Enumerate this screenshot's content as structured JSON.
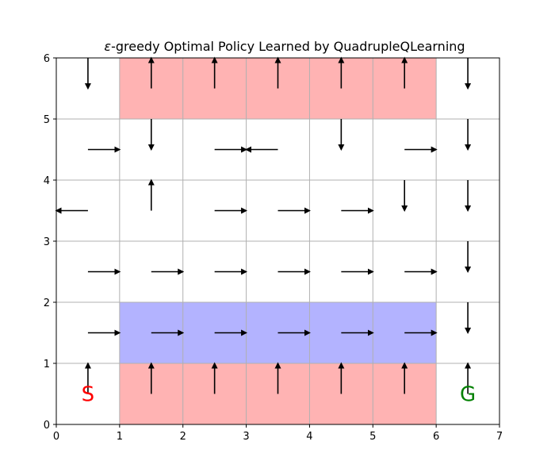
{
  "chart_data": {
    "type": "gridworld-policy",
    "title": "ε-greedy Optimal Policy Learned by QuadrupleQLearning",
    "title_prefix": "ε",
    "title_rest": "-greedy Optimal Policy Learned by QuadrupleQLearning",
    "xlim": [
      0,
      7
    ],
    "ylim": [
      0,
      6
    ],
    "xticks": [
      "0",
      "1",
      "2",
      "3",
      "4",
      "5",
      "6",
      "7"
    ],
    "yticks": [
      "0",
      "1",
      "2",
      "3",
      "4",
      "5",
      "6"
    ],
    "grid": true,
    "colors": {
      "hazard": "#ffb3b3",
      "blue_region": "#b3b3ff",
      "grid": "#b0b0b0",
      "arrow": "#000000",
      "start": "#ff0000",
      "goal": "#008000"
    },
    "regions": [
      {
        "name": "hazard-top",
        "kind": "hazard",
        "x0": 1,
        "x1": 6,
        "y0": 5,
        "y1": 6
      },
      {
        "name": "blue-row",
        "kind": "blue_region",
        "x0": 1,
        "x1": 6,
        "y0": 1,
        "y1": 2
      },
      {
        "name": "hazard-bottom",
        "kind": "hazard",
        "x0": 1,
        "x1": 6,
        "y0": 0,
        "y1": 1
      }
    ],
    "arrows": [
      {
        "col": 0,
        "row": 5,
        "dir": "down"
      },
      {
        "col": 1,
        "row": 5,
        "dir": "up"
      },
      {
        "col": 2,
        "row": 5,
        "dir": "up"
      },
      {
        "col": 3,
        "row": 5,
        "dir": "up"
      },
      {
        "col": 4,
        "row": 5,
        "dir": "up"
      },
      {
        "col": 5,
        "row": 5,
        "dir": "up"
      },
      {
        "col": 6,
        "row": 5,
        "dir": "down"
      },
      {
        "col": 0,
        "row": 4,
        "dir": "right"
      },
      {
        "col": 1,
        "row": 4,
        "dir": "down"
      },
      {
        "col": 2,
        "row": 4,
        "dir": "right"
      },
      {
        "col": 3,
        "row": 4,
        "dir": "left"
      },
      {
        "col": 4,
        "row": 4,
        "dir": "down"
      },
      {
        "col": 5,
        "row": 4,
        "dir": "right"
      },
      {
        "col": 6,
        "row": 4,
        "dir": "down"
      },
      {
        "col": 0,
        "row": 3,
        "dir": "left"
      },
      {
        "col": 1,
        "row": 3,
        "dir": "up"
      },
      {
        "col": 2,
        "row": 3,
        "dir": "right"
      },
      {
        "col": 3,
        "row": 3,
        "dir": "right"
      },
      {
        "col": 4,
        "row": 3,
        "dir": "right"
      },
      {
        "col": 5,
        "row": 3,
        "dir": "down"
      },
      {
        "col": 6,
        "row": 3,
        "dir": "down"
      },
      {
        "col": 0,
        "row": 2,
        "dir": "right"
      },
      {
        "col": 1,
        "row": 2,
        "dir": "right"
      },
      {
        "col": 2,
        "row": 2,
        "dir": "right"
      },
      {
        "col": 3,
        "row": 2,
        "dir": "right"
      },
      {
        "col": 4,
        "row": 2,
        "dir": "right"
      },
      {
        "col": 5,
        "row": 2,
        "dir": "right"
      },
      {
        "col": 6,
        "row": 2,
        "dir": "down"
      },
      {
        "col": 0,
        "row": 1,
        "dir": "right"
      },
      {
        "col": 1,
        "row": 1,
        "dir": "right"
      },
      {
        "col": 2,
        "row": 1,
        "dir": "right"
      },
      {
        "col": 3,
        "row": 1,
        "dir": "right"
      },
      {
        "col": 4,
        "row": 1,
        "dir": "right"
      },
      {
        "col": 5,
        "row": 1,
        "dir": "right"
      },
      {
        "col": 6,
        "row": 1,
        "dir": "down"
      },
      {
        "col": 0,
        "row": 0,
        "dir": "up"
      },
      {
        "col": 1,
        "row": 0,
        "dir": "up"
      },
      {
        "col": 2,
        "row": 0,
        "dir": "up"
      },
      {
        "col": 3,
        "row": 0,
        "dir": "up"
      },
      {
        "col": 4,
        "row": 0,
        "dir": "up"
      },
      {
        "col": 5,
        "row": 0,
        "dir": "up"
      },
      {
        "col": 6,
        "row": 0,
        "dir": "up"
      }
    ],
    "markers": [
      {
        "label": "S",
        "col": 0,
        "row": 0,
        "color": "#ff0000",
        "name": "start-marker"
      },
      {
        "label": "G",
        "col": 6,
        "row": 0,
        "color": "#008000",
        "name": "goal-marker"
      }
    ]
  }
}
